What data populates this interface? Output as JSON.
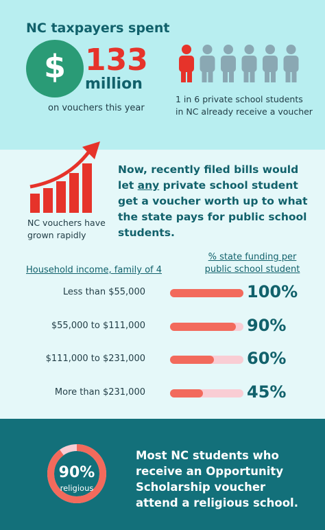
{
  "header": {
    "title": "NC taxpayers spent",
    "currency_symbol": "$",
    "amount": "133",
    "amount_unit": "million",
    "amount_caption": "on vouchers this year",
    "people_caption": "1 in 6 private school students in NC already receive a voucher"
  },
  "bills": {
    "chart_caption": "NC vouchers have grown rapidly",
    "text_before": "Now, recently filed bills would let ",
    "emphasis": "any",
    "text_after": " private school student get a voucher worth up to what the state pays for public school students."
  },
  "funding": {
    "category_title": "Household income, family of 4",
    "value_title": "% state funding per public school student",
    "categories": [
      "Less than $55,000",
      "$55,000 to $111,000",
      "$111,000 to $231,000",
      "More than $231,000"
    ],
    "values": [
      100,
      90,
      60,
      45
    ],
    "value_labels": [
      "100%",
      "90%",
      "60%",
      "45%"
    ],
    "xlim": [
      0,
      100
    ]
  },
  "religious": {
    "value": 90,
    "value_label": "90%",
    "label": "religious",
    "text": "Most NC students who receive an Opportunity Scholarship voucher attend a religious school."
  }
}
